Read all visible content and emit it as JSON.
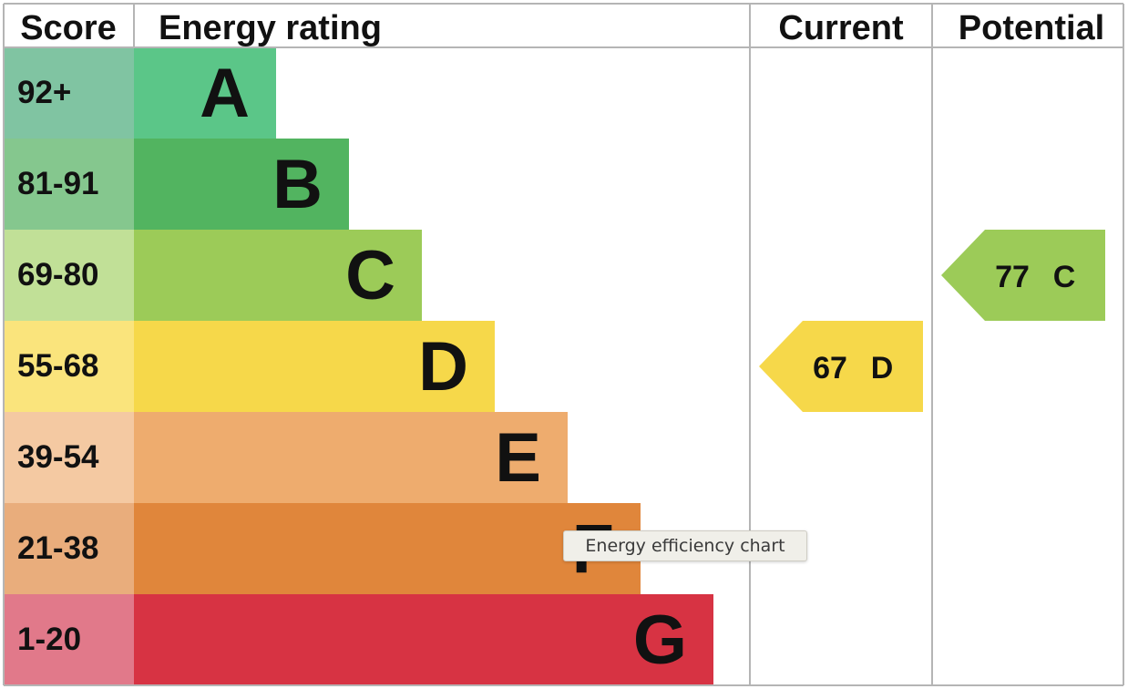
{
  "chart_data": {
    "type": "bar",
    "headers": {
      "score": "Score",
      "rating": "Energy rating",
      "current": "Current",
      "potential": "Potential"
    },
    "bands": [
      {
        "letter": "A",
        "range": "92+",
        "color": "#5bc688",
        "score_color": "#80c4a2"
      },
      {
        "letter": "B",
        "range": "81-91",
        "color": "#52b460",
        "score_color": "#85c78e"
      },
      {
        "letter": "C",
        "range": "69-80",
        "color": "#9ccb58",
        "score_color": "#c1e097"
      },
      {
        "letter": "D",
        "range": "55-68",
        "color": "#f6d84a",
        "score_color": "#fae47c"
      },
      {
        "letter": "E",
        "range": "39-54",
        "color": "#eeac6e",
        "score_color": "#f4c9a2"
      },
      {
        "letter": "F",
        "range": "21-38",
        "color": "#e0863b",
        "score_color": "#e9ad7c"
      },
      {
        "letter": "G",
        "range": "1-20",
        "color": "#d73343",
        "score_color": "#e1798a"
      }
    ],
    "current": {
      "value": "67",
      "band": "D"
    },
    "potential": {
      "value": "77",
      "band": "C"
    }
  },
  "tooltip": {
    "text": "Energy efficiency chart"
  }
}
